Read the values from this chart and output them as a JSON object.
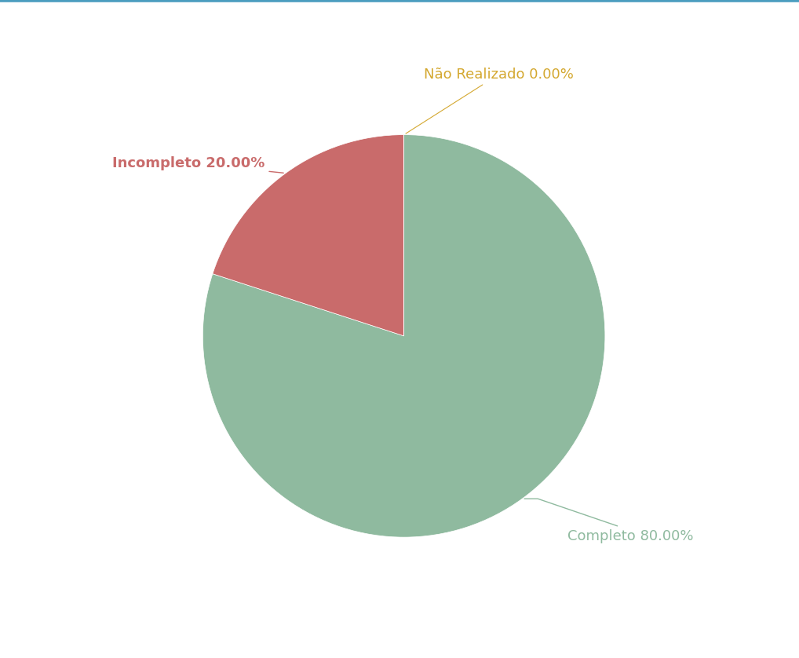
{
  "labels": [
    "Completo",
    "Incompleto",
    "Não Realizado"
  ],
  "values": [
    80.0,
    20.0,
    0.001
  ],
  "colors": [
    "#8fba9f",
    "#c96b6b",
    "#e8c840"
  ],
  "label_texts": [
    "Completo 80.00%",
    "Incompleto 20.00%",
    "Não Realizado 0.00%"
  ],
  "label_colors": [
    "#8fba9f",
    "#c96b6b",
    "#d4a830"
  ],
  "background_color": "#ffffff",
  "top_border_color": "#4a9dbf",
  "startangle": 90,
  "figsize": [
    10.18,
    8.38
  ],
  "dpi": 100
}
